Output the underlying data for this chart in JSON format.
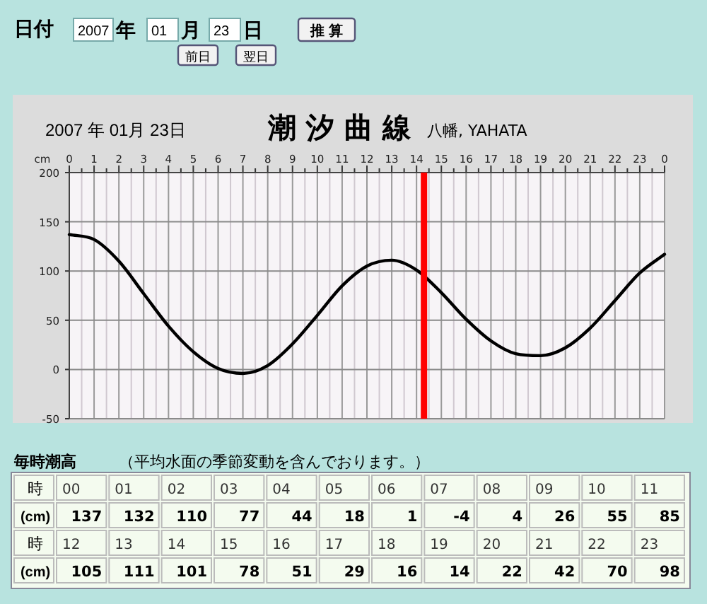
{
  "chart_data": {
    "type": "line",
    "title": "潮 汐 曲 線",
    "subtitle": "八幡, YAHATA",
    "ylabel": "cm",
    "annotations": [
      "日付",
      "2007",
      "年",
      "01",
      "月",
      "23",
      "日",
      "推 算",
      "前日",
      "翌日",
      "2007 年 01月 23日",
      "毎時潮高",
      "（平均水面の季節変動を含んでおります。）",
      "時",
      "(cm)",
      "00",
      "01",
      "02",
      "03",
      "04",
      "05",
      "06",
      "07",
      "08",
      "09",
      "10",
      "11",
      "12",
      "13",
      "14",
      "15",
      "16",
      "17",
      "18",
      "19",
      "20",
      "21",
      "22",
      "23",
      "137",
      "132",
      "110",
      "77",
      "44",
      "18",
      "1",
      "-4",
      "4",
      "26",
      "55",
      "85",
      "105",
      "111",
      "101",
      "78",
      "51",
      "29",
      "16",
      "14",
      "22",
      "42",
      "70",
      "98"
    ],
    "x": [
      "2007-01-23T00:00",
      "2007-01-23T01:00",
      "2007-01-23T02:00",
      "2007-01-23T03:00",
      "2007-01-23T04:00",
      "2007-01-23T05:00",
      "2007-01-23T06:00",
      "2007-01-23T07:00",
      "2007-01-23T08:00",
      "2007-01-23T09:00",
      "2007-01-23T10:00",
      "2007-01-23T11:00",
      "2007-01-23T12:00",
      "2007-01-23T13:00",
      "2007-01-23T14:00",
      "2007-01-23T15:00",
      "2007-01-23T16:00",
      "2007-01-23T17:00",
      "2007-01-23T18:00",
      "2007-01-23T19:00",
      "2007-01-23T20:00",
      "2007-01-23T21:00",
      "2007-01-23T22:00",
      "2007-01-23T23:00",
      "2007-01-24T00:00"
    ],
    "series": [
      {
        "color": "#000000",
        "values": [
          137,
          132,
          110,
          77,
          44,
          18,
          1,
          -4,
          4,
          26,
          55,
          85,
          105,
          111,
          101,
          78,
          51,
          29,
          16,
          14,
          22,
          42,
          70,
          98,
          117
        ]
      }
    ],
    "xlim": [
      "2007-01-23T00:00",
      "2007-01-24T00:00"
    ],
    "xticks": [
      {
        "value": "2007-01-23T00:00",
        "label": "0"
      },
      {
        "value": "2007-01-23T00:30",
        "label": null
      },
      {
        "value": "2007-01-23T01:00",
        "label": "1"
      },
      {
        "value": "2007-01-23T01:30",
        "label": null
      },
      {
        "value": "2007-01-23T02:00",
        "label": "2"
      },
      {
        "value": "2007-01-23T02:30",
        "label": null
      },
      {
        "value": "2007-01-23T03:00",
        "label": "3"
      },
      {
        "value": "2007-01-23T03:30",
        "label": null
      },
      {
        "value": "2007-01-23T04:00",
        "label": "4"
      },
      {
        "value": "2007-01-23T04:30",
        "label": null
      },
      {
        "value": "2007-01-23T05:00",
        "label": "5"
      },
      {
        "value": "2007-01-23T05:30",
        "label": null
      },
      {
        "value": "2007-01-23T06:00",
        "label": "6"
      },
      {
        "value": "2007-01-23T06:30",
        "label": null
      },
      {
        "value": "2007-01-23T07:00",
        "label": "7"
      },
      {
        "value": "2007-01-23T07:30",
        "label": null
      },
      {
        "value": "2007-01-23T08:00",
        "label": "8"
      },
      {
        "value": "2007-01-23T08:30",
        "label": null
      },
      {
        "value": "2007-01-23T09:00",
        "label": "9"
      },
      {
        "value": "2007-01-23T09:30",
        "label": null
      },
      {
        "value": "2007-01-23T10:00",
        "label": "10"
      },
      {
        "value": "2007-01-23T10:30",
        "label": null
      },
      {
        "value": "2007-01-23T11:00",
        "label": "11"
      },
      {
        "value": "2007-01-23T11:30",
        "label": null
      },
      {
        "value": "2007-01-23T12:00",
        "label": "12"
      },
      {
        "value": "2007-01-23T12:30",
        "label": null
      },
      {
        "value": "2007-01-23T13:00",
        "label": "13"
      },
      {
        "value": "2007-01-23T13:30",
        "label": null
      },
      {
        "value": "2007-01-23T14:00",
        "label": "14"
      },
      {
        "value": "2007-01-23T14:30",
        "label": null
      },
      {
        "value": "2007-01-23T15:00",
        "label": "15"
      },
      {
        "value": "2007-01-23T15:30",
        "label": null
      },
      {
        "value": "2007-01-23T16:00",
        "label": "16"
      },
      {
        "value": "2007-01-23T16:30",
        "label": null
      },
      {
        "value": "2007-01-23T17:00",
        "label": "17"
      },
      {
        "value": "2007-01-23T17:30",
        "label": null
      },
      {
        "value": "2007-01-23T18:00",
        "label": "18"
      },
      {
        "value": "2007-01-23T18:30",
        "label": null
      },
      {
        "value": "2007-01-23T19:00",
        "label": "19"
      },
      {
        "value": "2007-01-23T19:30",
        "label": null
      },
      {
        "value": "2007-01-23T20:00",
        "label": "20"
      },
      {
        "value": "2007-01-23T20:30",
        "label": null
      },
      {
        "value": "2007-01-23T21:00",
        "label": "21"
      },
      {
        "value": "2007-01-23T21:30",
        "label": null
      },
      {
        "value": "2007-01-23T22:00",
        "label": "22"
      },
      {
        "value": "2007-01-23T22:30",
        "label": null
      },
      {
        "value": "2007-01-23T23:00",
        "label": "23"
      },
      {
        "value": "2007-01-23T23:30",
        "label": null
      },
      {
        "value": "2007-01-24T00:00",
        "label": "0"
      }
    ],
    "ylim": [
      -50,
      200
    ],
    "yticks": [
      -50,
      0,
      50,
      100,
      150,
      200
    ],
    "grid": true,
    "marker": "none",
    "line_style": "solid",
    "ref_lines": [
      {
        "axis": "x",
        "value": "2007-01-23T14:18",
        "color": "#ff0000"
      }
    ]
  }
}
